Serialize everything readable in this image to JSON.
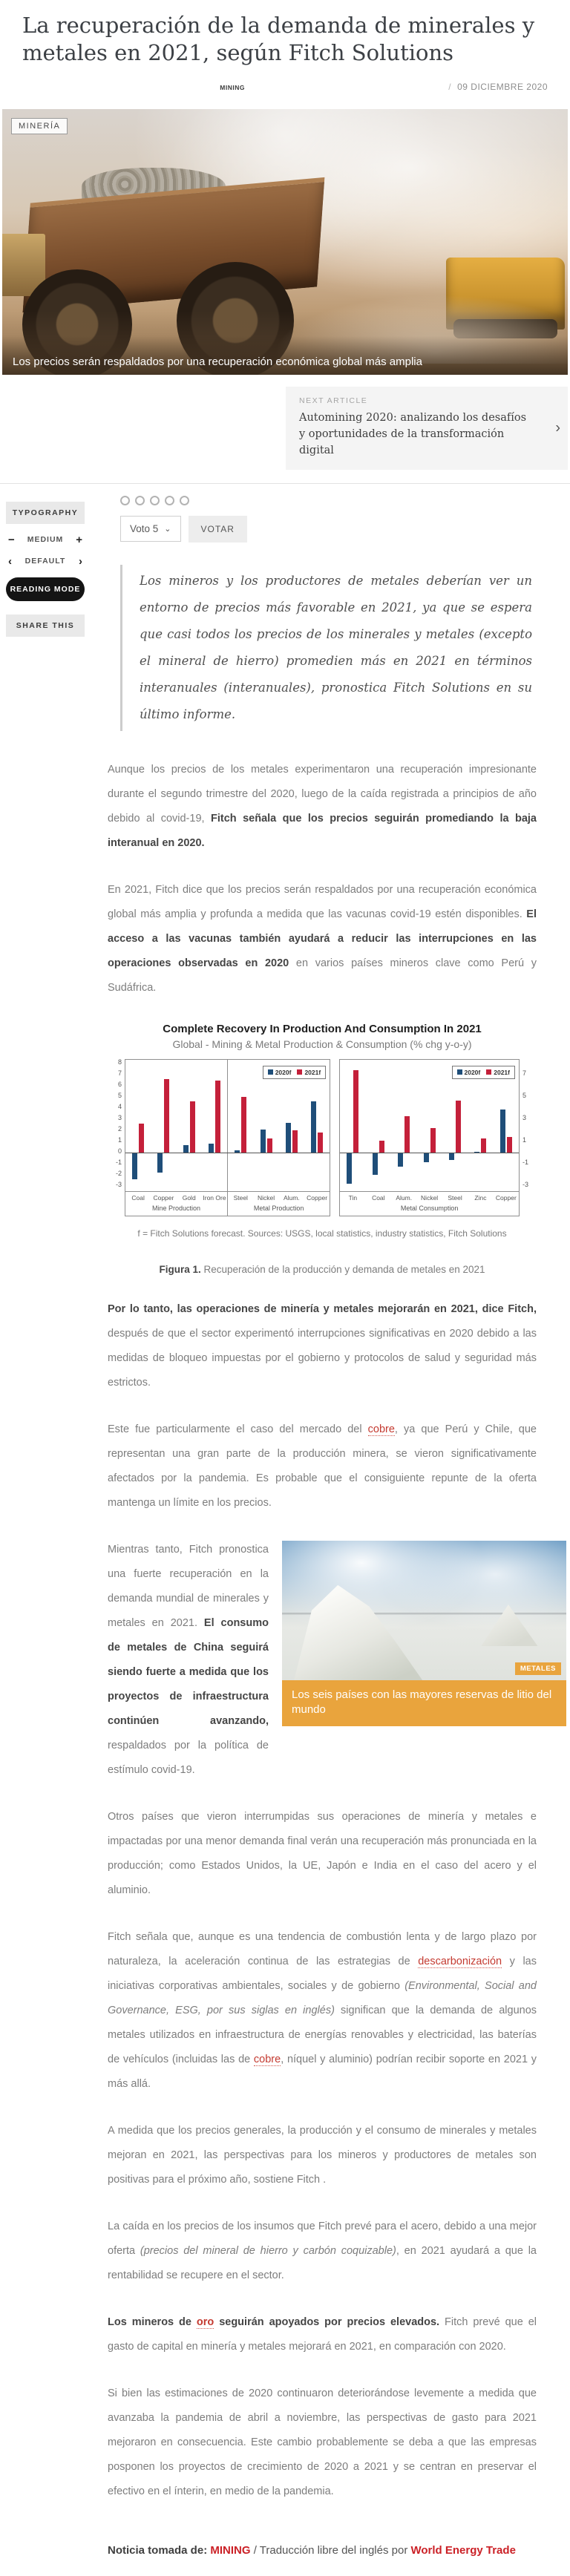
{
  "article": {
    "title": "La recuperación de la demanda de minerales y metales en 2021, según Fitch Solutions",
    "category": "MINING",
    "date": "09 DICIEMBRE 2020",
    "hero_badge": "MINERÍA",
    "hero_caption": "Los precios serán respaldados por una recuperación económica global más amplia"
  },
  "next_article": {
    "label": "NEXT ARTICLE",
    "title": "Automining 2020: analizando los desafíos y oportunidades de la transformación digital"
  },
  "icons": {
    "slash": "/",
    "chevron_right": "›",
    "caret_down": "⌄",
    "minus": "−",
    "plus": "+",
    "arrow_left": "‹",
    "arrow_right": "›"
  },
  "sidebar": {
    "typography_label": "TYPOGRAPHY",
    "size_label": "MEDIUM",
    "font_label": "DEFAULT",
    "reading_mode_label": "READING MODE",
    "share_label": "SHARE THIS"
  },
  "vote": {
    "dots": 5,
    "select_label": "Voto 5",
    "button_label": "VOTAR"
  },
  "quote": "Los mineros y los productores de metales deberían ver un entorno de precios más favorable en 2021, ya que se espera que casi todos los precios de los minerales y metales (excepto el mineral de hierro) promedien más en 2021 en términos interanuales (interanuales), pronostica Fitch Solutions en su último informe.",
  "paragraphs": [
    [
      {
        "t": "Aunque los precios de los metales experimentaron una recuperación impresionante durante el segundo trimestre del 2020, luego de la caída registrada a principios de año debido al covid-19, ",
        "s": "n"
      },
      {
        "t": "Fitch señala que los precios seguirán promediando la baja interanual en 2020.",
        "s": "b"
      }
    ],
    [
      {
        "t": "En 2021, Fitch dice que los precios serán respaldados por una recuperación económica global más amplia y profunda a medida que las vacunas covid-19 estén disponibles. ",
        "s": "n"
      },
      {
        "t": "El acceso a las vacunas también ayudará a reducir las interrupciones en las operaciones observadas en 2020",
        "s": "b"
      },
      {
        "t": " en varios países mineros clave como Perú y Sudáfrica.",
        "s": "n"
      }
    ],
    [
      {
        "t": "Por lo tanto, las operaciones de minería y metales mejorarán en 2021, dice Fitch,",
        "s": "b"
      },
      {
        "t": " después de que el sector experimentó interrupciones significativas en 2020 debido a las medidas de bloqueo impuestas por el gobierno y protocolos de salud y seguridad más estrictos.",
        "s": "n"
      }
    ],
    [
      {
        "t": "Este fue particularmente el caso del mercado del ",
        "s": "n"
      },
      {
        "t": "cobre",
        "s": "l"
      },
      {
        "t": ", ya que Perú y Chile, que representan una gran parte de la producción minera, se vieron significativamente afectados por la pandemia. Es probable que el consiguiente repunte de la oferta mantenga un límite en los precios.",
        "s": "n"
      }
    ],
    [
      {
        "t": "Mientras tanto, Fitch pronostica una fuerte recuperación en la demanda mundial de minerales y metales en 2021. ",
        "s": "n"
      },
      {
        "t": "El consumo de metales de China seguirá siendo fuerte a medida que los proyectos de infraestructura continúen avanzando,",
        "s": "b"
      },
      {
        "t": " respaldados por la política de estímulo covid-19.",
        "s": "n"
      }
    ],
    [
      {
        "t": "Otros países que vieron interrumpidas sus operaciones de minería y metales e impactadas por una menor demanda final verán una recuperación más pronunciada en la producción; como Estados Unidos, la UE, Japón e India en el caso del acero y el aluminio.",
        "s": "n"
      }
    ],
    [
      {
        "t": "Fitch señala que, aunque es una tendencia de combustión lenta y de largo plazo por naturaleza, la aceleración continua de las estrategias de ",
        "s": "n"
      },
      {
        "t": "descarbonización",
        "s": "l"
      },
      {
        "t": " y las iniciativas corporativas ambientales, sociales y de gobierno ",
        "s": "n"
      },
      {
        "t": "(Environmental, Social and Governance, ESG, por sus siglas en inglés)",
        "s": "i"
      },
      {
        "t": " significan que la demanda de algunos metales utilizados en infraestructura de energías renovables y electricidad, las baterías de vehículos (incluidas las de ",
        "s": "n"
      },
      {
        "t": "cobre",
        "s": "l"
      },
      {
        "t": ", níquel y aluminio) podrían recibir soporte en 2021 y más allá.",
        "s": "n"
      }
    ],
    [
      {
        "t": "A medida que los precios generales, la producción y el consumo de minerales y metales mejoran en 2021, las perspectivas para los mineros y productores de metales son positivas para el próximo año, sostiene Fitch .",
        "s": "n"
      }
    ],
    [
      {
        "t": "La caída en los precios de los insumos que Fitch prevé para el acero, debido a una mejor oferta ",
        "s": "n"
      },
      {
        "t": "(precios del mineral de hierro y carbón coquizable)",
        "s": "i"
      },
      {
        "t": ", en 2021 ayudará a que la rentabilidad se recupere en el sector.",
        "s": "n"
      }
    ],
    [
      {
        "t": "Los mineros de ",
        "s": "b"
      },
      {
        "t": "oro",
        "s": "lb"
      },
      {
        "t": " seguirán apoyados por precios elevados.",
        "s": "b"
      },
      {
        "t": " Fitch prevé que el gasto de capital en minería y metales mejorará en 2021, en comparación con 2020.",
        "s": "n"
      }
    ],
    [
      {
        "t": "Si bien las estimaciones de 2020 continuaron deteriorándose levemente a medida que avanzaba la pandemia de abril a noviembre, las perspectivas de gasto para 2021 mejoraron en consecuencia. Este cambio probablemente se deba a que las empresas posponen los proyectos de crecimiento de 2020 a 2021 y se centran en preservar el efectivo en el ínterin, en medio de la pandemia.",
        "s": "n"
      }
    ]
  ],
  "figure": {
    "label": "Figura 1.",
    "caption": " Recuperación de la producción y demanda de metales en 2021"
  },
  "lithium_card": {
    "badge": "METALES",
    "caption": "Los seis países con las mayores reservas de litio del mundo"
  },
  "footer": {
    "prefix": "Noticia tomada de: ",
    "source1": "MINING",
    "middle": " / Traducción libre del inglés por ",
    "source2": "World Energy Trade"
  },
  "chart_data": {
    "type": "bar",
    "title": "Complete Recovery In Production And Consumption In 2021",
    "subtitle": "Global - Mining & Metal Production & Consumption (% chg y-o-y)",
    "footnote": "f = Fitch Solutions forecast. Sources: USGS, local statistics, industry statistics, Fitch Solutions",
    "legend": [
      "2020f",
      "2021f"
    ],
    "colors": [
      "#1f4e79",
      "#c4203a"
    ],
    "ylim": [
      -3,
      8
    ],
    "left_axis_ticks": [
      8,
      7,
      6,
      5,
      4,
      3,
      2,
      1,
      0,
      -1,
      -2,
      -3
    ],
    "right_axis_ticks": [
      7,
      5,
      3,
      1,
      -1,
      -3
    ],
    "grid": false,
    "legend_position": "top-right-inside",
    "panels": [
      {
        "groups": [
          {
            "label": "Mine Production",
            "categories": [
              "Coal",
              "Copper",
              "Gold",
              "Iron Ore"
            ],
            "series": [
              {
                "name": "2020f",
                "values": [
                  -2.3,
                  -1.7,
                  0.7,
                  0.8
                ]
              },
              {
                "name": "2021f",
                "values": [
                  2.6,
                  6.6,
                  4.6,
                  6.5
                ]
              }
            ]
          },
          {
            "label": "Metal Production",
            "categories": [
              "Steel",
              "Nickel",
              "Alum.",
              "Copper"
            ],
            "series": [
              {
                "name": "2020f",
                "values": [
                  0.2,
                  2.1,
                  2.7,
                  4.6
                ]
              },
              {
                "name": "2021f",
                "values": [
                  5.0,
                  1.3,
                  2.0,
                  1.8
                ]
              }
            ]
          }
        ]
      },
      {
        "groups": [
          {
            "label": "Metal Consumption",
            "categories": [
              "Tin",
              "Coal",
              "Alum.",
              "Nickel",
              "Steel",
              "Zinc",
              "Copper"
            ],
            "series": [
              {
                "name": "2020f",
                "values": [
                  -2.7,
                  -1.9,
                  -1.2,
                  -0.8,
                  -0.6,
                  0.1,
                  3.9
                ]
              },
              {
                "name": "2021f",
                "values": [
                  7.4,
                  1.1,
                  3.3,
                  2.2,
                  4.7,
                  1.3,
                  1.4
                ]
              }
            ]
          }
        ]
      }
    ]
  }
}
